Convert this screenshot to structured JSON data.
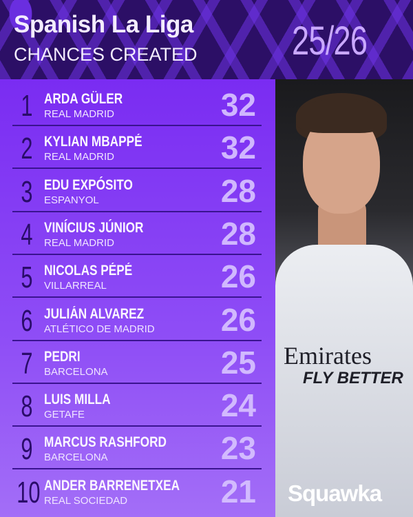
{
  "header": {
    "title": "Spanish La Liga",
    "subtitle": "CHANCES CREATED",
    "season": "25/26"
  },
  "photo": {
    "sponsor": "Emirates",
    "sponsor_tagline": "FLY BETTER"
  },
  "brand": "Squawka",
  "colors": {
    "header_bg": "#2c0f66",
    "panel_top": "#7a2cf2",
    "panel_bottom": "#a36ef7",
    "value": "#d7c2ff",
    "rank": "#2a0c6a"
  },
  "chart_data": {
    "type": "table",
    "title": "Spanish La Liga",
    "subtitle": "CHANCES CREATED",
    "columns": [
      "rank",
      "player",
      "club",
      "chances_created"
    ],
    "rows": [
      {
        "rank": "1",
        "player": "ARDA GÜLER",
        "club": "REAL MADRID",
        "value": "32"
      },
      {
        "rank": "2",
        "player": "KYLIAN MBAPPÉ",
        "club": "REAL MADRID",
        "value": "32"
      },
      {
        "rank": "3",
        "player": "EDU EXPÓSITO",
        "club": "ESPANYOL",
        "value": "28"
      },
      {
        "rank": "4",
        "player": "VINÍCIUS JÚNIOR",
        "club": "REAL MADRID",
        "value": "28"
      },
      {
        "rank": "5",
        "player": "NICOLAS PÉPÉ",
        "club": "VILLARREAL",
        "value": "26"
      },
      {
        "rank": "6",
        "player": "JULIÁN ALVAREZ",
        "club": "ATLÉTICO DE MADRID",
        "value": "26"
      },
      {
        "rank": "7",
        "player": "PEDRI",
        "club": "BARCELONA",
        "value": "25"
      },
      {
        "rank": "8",
        "player": "LUIS MILLA",
        "club": "GETAFE",
        "value": "24"
      },
      {
        "rank": "9",
        "player": "MARCUS RASHFORD",
        "club": "BARCELONA",
        "value": "23"
      },
      {
        "rank": "10",
        "player": "ANDER BARRENETXEA",
        "club": "REAL SOCIEDAD",
        "value": "21"
      }
    ]
  }
}
